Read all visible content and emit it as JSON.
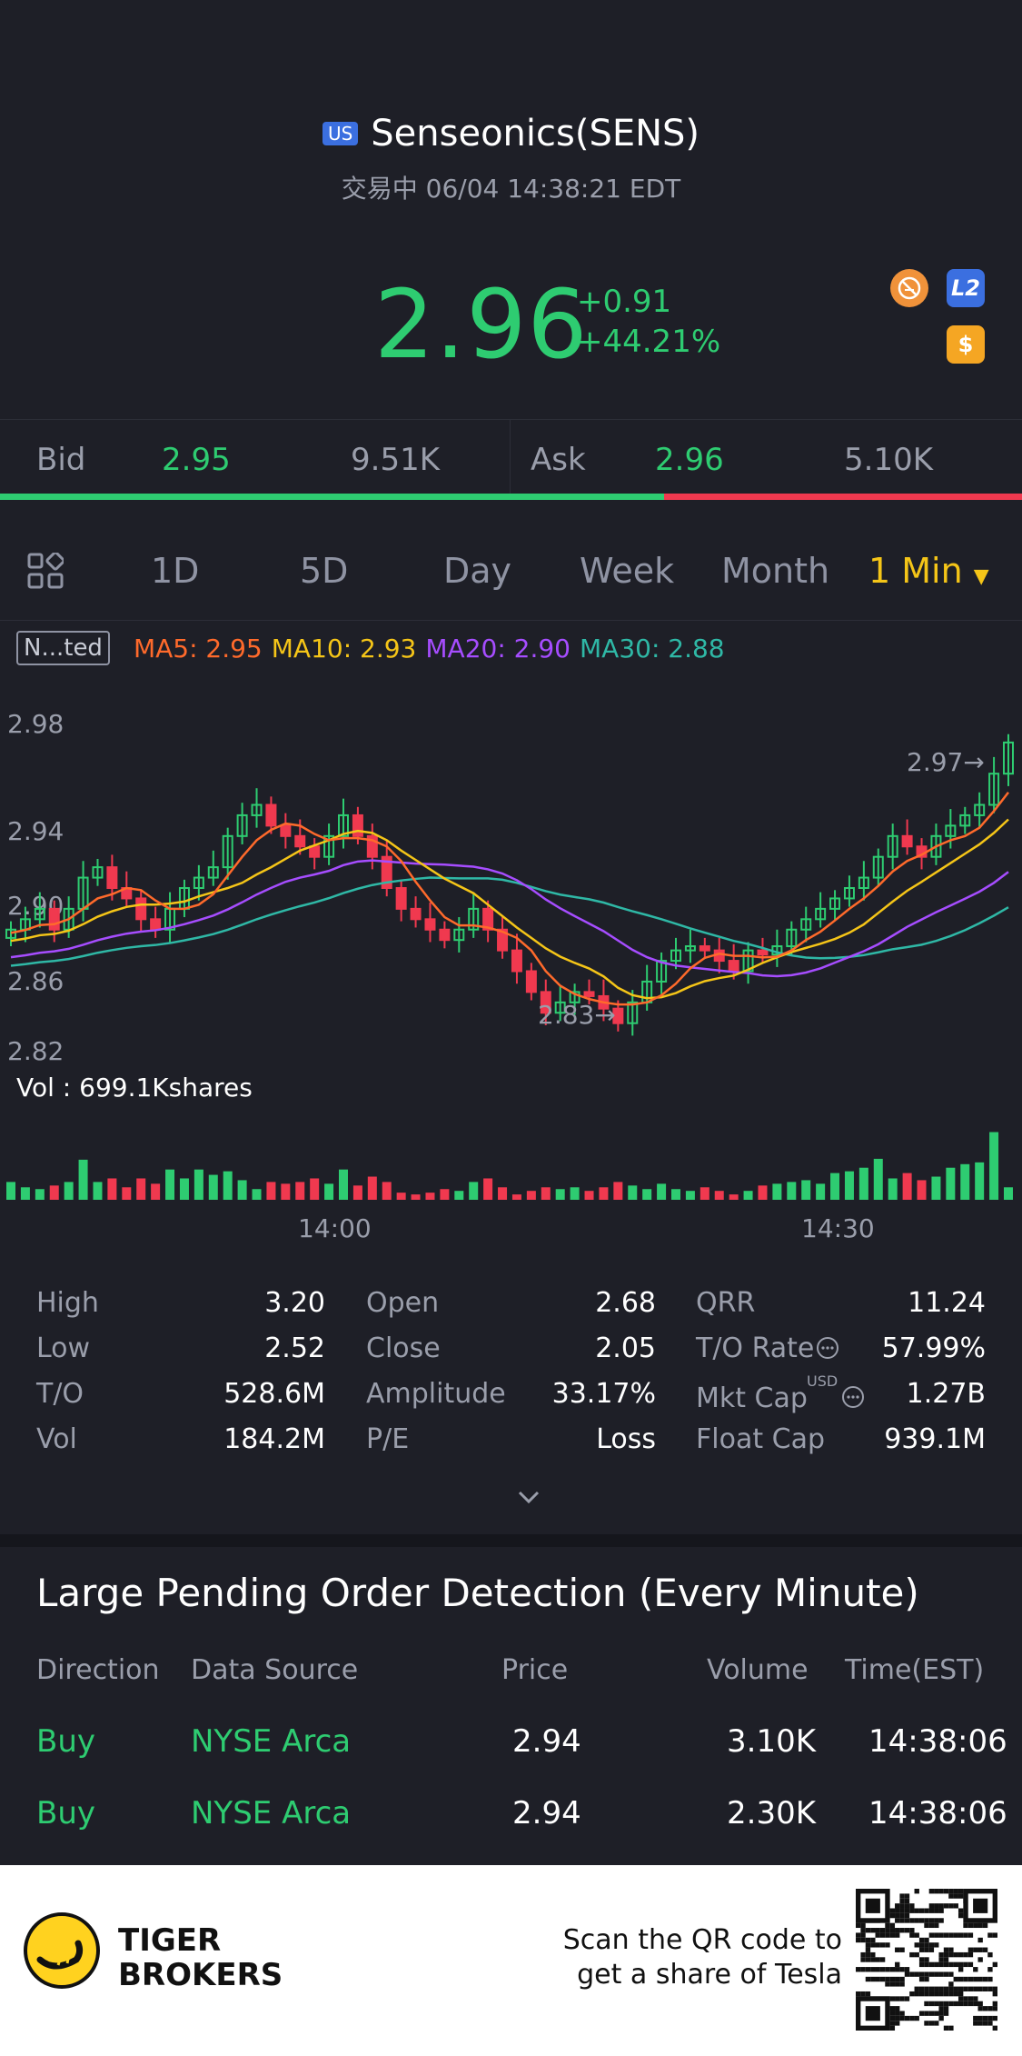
{
  "header": {
    "market_badge": "US",
    "name": "Senseonics(SENS)",
    "status": "交易中 06/04 14:38:21 EDT",
    "price": "2.96",
    "change": "+0.91",
    "change_pct": "+44.21%",
    "icons": [
      "no-margin-icon",
      "l2-icon",
      "dollar-icon"
    ],
    "l2_label": "L2",
    "dollar_label": "$"
  },
  "bidask": {
    "bid_label": "Bid",
    "bid_price": "2.95",
    "bid_size": "9.51K",
    "ask_label": "Ask",
    "ask_price": "2.96",
    "ask_size": "5.10K",
    "bid_ratio": 0.65
  },
  "tabs": {
    "items": [
      "1D",
      "5D",
      "Day",
      "Week",
      "Month"
    ],
    "active": "1 Min"
  },
  "indicator": {
    "mode": "N...ted",
    "ma5": "MA5: 2.95",
    "ma10": "MA10: 2.93",
    "ma20": "MA20: 2.90",
    "ma30": "MA30: 2.88",
    "colors": {
      "ma5": "#ff6a2b",
      "ma10": "#f5c518",
      "ma20": "#a64dff",
      "ma30": "#2fb8a6",
      "up": "#2ecc71",
      "down": "#f0394f"
    }
  },
  "chart_data": {
    "type": "candlestick",
    "y_ticks": [
      "2.98",
      "2.94",
      "2.90",
      "2.86",
      "2.82"
    ],
    "ylim": [
      2.82,
      2.98
    ],
    "x_ticks": [
      "14:00",
      "14:30"
    ],
    "high_marker": "2.97→",
    "low_marker": "2.83→",
    "volume_label": "Vol  : 699.1Kshares",
    "close": [
      2.88,
      2.885,
      2.89,
      2.88,
      2.89,
      2.905,
      2.91,
      2.9,
      2.895,
      2.885,
      2.88,
      2.89,
      2.9,
      2.905,
      2.91,
      2.925,
      2.935,
      2.94,
      2.93,
      2.925,
      2.92,
      2.915,
      2.925,
      2.935,
      2.925,
      2.915,
      2.9,
      2.89,
      2.885,
      2.88,
      2.875,
      2.88,
      2.89,
      2.88,
      2.87,
      2.86,
      2.85,
      2.84,
      2.845,
      2.85,
      2.848,
      2.842,
      2.835,
      2.845,
      2.855,
      2.865,
      2.87,
      2.872,
      2.87,
      2.865,
      2.86,
      2.87,
      2.868,
      2.872,
      2.88,
      2.885,
      2.89,
      2.895,
      2.9,
      2.905,
      2.915,
      2.925,
      2.92,
      2.915,
      2.925,
      2.93,
      2.935,
      2.94,
      2.955,
      2.97
    ],
    "volume": [
      0.2,
      0.14,
      0.12,
      0.16,
      0.2,
      0.45,
      0.2,
      0.24,
      0.14,
      0.24,
      0.18,
      0.34,
      0.24,
      0.34,
      0.28,
      0.32,
      0.22,
      0.12,
      0.2,
      0.18,
      0.2,
      0.24,
      0.18,
      0.34,
      0.16,
      0.26,
      0.2,
      0.08,
      0.06,
      0.08,
      0.12,
      0.1,
      0.2,
      0.24,
      0.14,
      0.06,
      0.1,
      0.14,
      0.12,
      0.14,
      0.1,
      0.14,
      0.2,
      0.16,
      0.12,
      0.18,
      0.12,
      0.1,
      0.14,
      0.1,
      0.06,
      0.1,
      0.16,
      0.18,
      0.2,
      0.22,
      0.18,
      0.3,
      0.32,
      0.36,
      0.46,
      0.24,
      0.3,
      0.22,
      0.26,
      0.36,
      0.4,
      0.42,
      0.76,
      0.14
    ]
  },
  "stats": [
    {
      "label": "High",
      "value": "3.20"
    },
    {
      "label": "Low",
      "value": "2.52"
    },
    {
      "label": "T/O",
      "value": "528.6M"
    },
    {
      "label": "Vol",
      "value": "184.2M"
    },
    {
      "label": "Open",
      "value": "2.68"
    },
    {
      "label": "Close",
      "value": "2.05"
    },
    {
      "label": "Amplitude",
      "value": "33.17%"
    },
    {
      "label": "P/E",
      "value": "Loss"
    },
    {
      "label": "QRR",
      "value": "11.24"
    },
    {
      "label": "T/O Rate",
      "value": "57.99%"
    },
    {
      "label": "Mkt Cap",
      "value": "1.27B"
    },
    {
      "label": "Float Cap",
      "value": "939.1M"
    }
  ],
  "mkt_cap_currency": "USD",
  "orders": {
    "title": "Large Pending Order Detection (Every Minute)",
    "columns": [
      "Direction",
      "Data Source",
      "Price",
      "Volume",
      "Time(EST)"
    ],
    "rows": [
      [
        "Buy",
        "NYSE Arca",
        "2.94",
        "3.10K",
        "14:38:06"
      ],
      [
        "Buy",
        "NYSE Arca",
        "2.94",
        "2.30K",
        "14:38:06"
      ]
    ]
  },
  "footer": {
    "brand_line1": "TIGER",
    "brand_line2": "BROKERS",
    "promo_line1": "Scan the QR code to",
    "promo_line2": "get a share of Tesla"
  }
}
